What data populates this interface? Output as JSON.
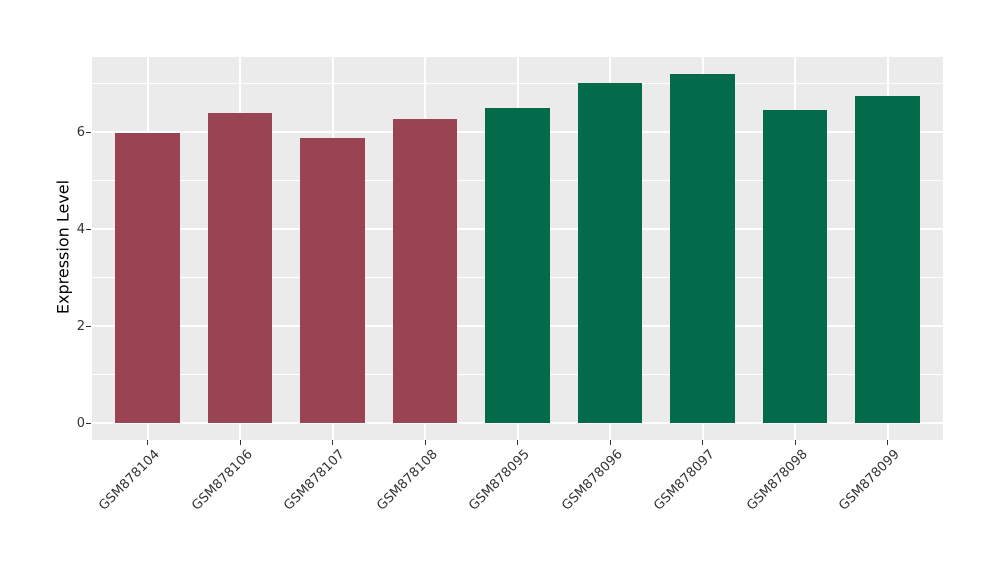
{
  "figure": {
    "background_color": "#FFFFFF",
    "panel_background_color": "#EBEBEB",
    "gridline_color": "#FFFFFF",
    "tick_color": "#333333",
    "axis_text_color": "#333333"
  },
  "chart_data": {
    "type": "bar",
    "title": "",
    "xlabel": "",
    "ylabel": "Expression Level",
    "categories": [
      "GSM878104",
      "GSM878106",
      "GSM878107",
      "GSM878108",
      "GSM878095",
      "GSM878096",
      "GSM878097",
      "GSM878098",
      "GSM878099"
    ],
    "values": [
      5.98,
      6.39,
      5.87,
      6.27,
      6.49,
      7.02,
      7.2,
      6.45,
      6.75
    ],
    "bar_colors": [
      "#9A4352",
      "#9A4352",
      "#9A4352",
      "#9A4352",
      "#046B4A",
      "#046B4A",
      "#046B4A",
      "#046B4A",
      "#046B4A"
    ],
    "palette": {
      "maroon_group": "#9A4352",
      "green_group": "#046B4A"
    },
    "ylim": [
      -0.35,
      7.55
    ],
    "yticks": [
      0,
      2,
      4,
      6
    ],
    "ytick_labels": [
      "0",
      "2",
      "4",
      "6"
    ],
    "yticks_minor": [
      1,
      3,
      5,
      7
    ],
    "bar_width_fraction": 0.7,
    "x_label_angle_deg": 45,
    "grid": "major+minor horizontal, major vertical at category centers",
    "legend": false
  }
}
